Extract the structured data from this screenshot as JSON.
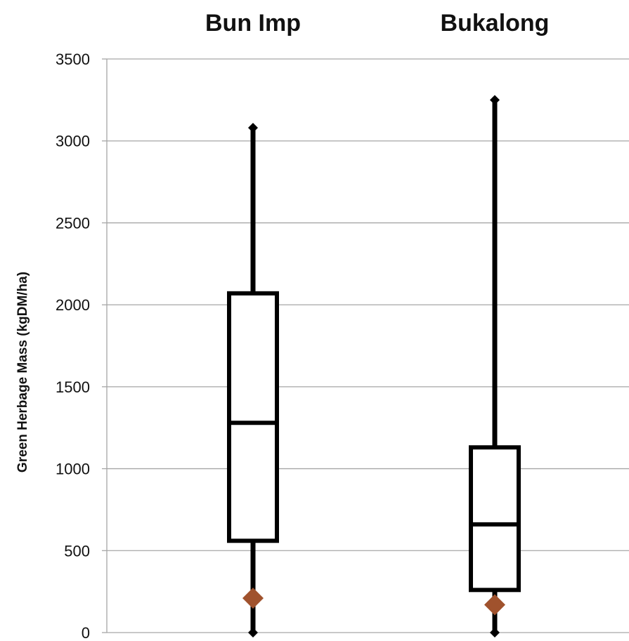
{
  "chart_data": {
    "type": "boxplot",
    "title": "",
    "xlabel": "",
    "ylabel": "Green Herbage Mass (kgDM/ha)",
    "ylim": [
      0,
      3500
    ],
    "yticks": [
      0,
      500,
      1000,
      1500,
      2000,
      2500,
      3000,
      3500
    ],
    "ytick_labels": [
      "0",
      "500",
      "1000",
      "1500",
      "2000",
      "2500",
      "3000",
      "3500"
    ],
    "grid": true,
    "category_label_position": "top",
    "categories": [
      "Bun Imp",
      "Bukalong"
    ],
    "series": [
      {
        "min": 0,
        "q1": 560,
        "median": 1280,
        "q3": 2070,
        "max": 3080,
        "mean": 210
      },
      {
        "min": 0,
        "q1": 260,
        "median": 660,
        "q3": 1130,
        "max": 3250,
        "mean": 170
      }
    ],
    "colors": {
      "box": "#000000",
      "grid": "#a6a6a6",
      "mean_marker": "#a0522d"
    }
  }
}
